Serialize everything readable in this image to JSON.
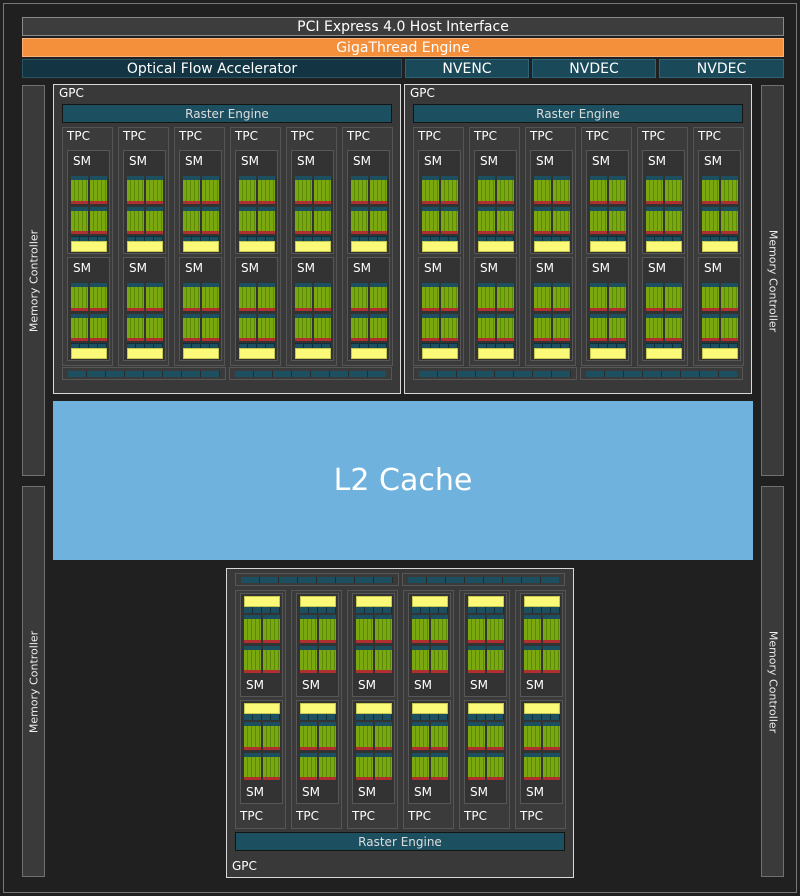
{
  "header": {
    "pci": "PCI Express 4.0 Host Interface",
    "gigathread": "GigaThread Engine",
    "optical_flow": "Optical Flow Accelerator",
    "nvenc": "NVENC",
    "nvdec": [
      "NVDEC",
      "NVDEC"
    ]
  },
  "memory_controller": "Memory Controller",
  "l2": "L2 Cache",
  "gpc": {
    "label": "GPC",
    "raster": "Raster Engine",
    "tpc_label": "TPC",
    "sm_label": "SM",
    "tpcs_per_gpc": 6,
    "sms_per_tpc": 2,
    "count": 3
  },
  "colors": {
    "gigathread": "#f48f3b",
    "l2": "#6fb2dd",
    "cores": "#7aa80e",
    "teal": "#1c5060",
    "red": "#b03030",
    "yellow": "#fafa78"
  }
}
